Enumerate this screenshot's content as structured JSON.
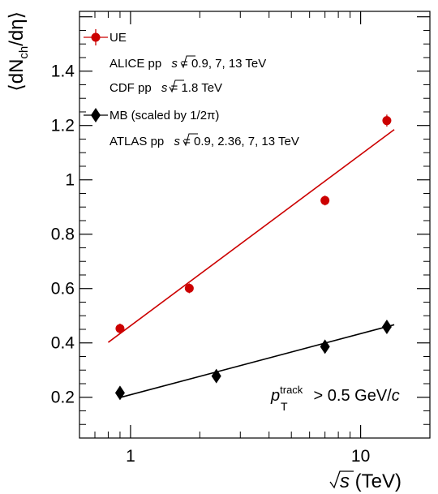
{
  "chart_data": {
    "type": "scatter",
    "title": "",
    "xscale": "log",
    "xlim": [
      0.6,
      20
    ],
    "ylim": [
      0.05,
      1.62
    ],
    "grid": false,
    "legend_position": "top-left",
    "xlabel": {
      "sqrt": "s",
      "rest": " (TeV)"
    },
    "ylabel": {
      "pre": "⟨dN",
      "sub": "ch",
      "post": "/dη⟩"
    },
    "x_ticks": [
      {
        "value": 1,
        "label": "1"
      },
      {
        "value": 10,
        "label": "10"
      }
    ],
    "y_ticks": [
      {
        "value": 0.2,
        "label": "0.2"
      },
      {
        "value": 0.4,
        "label": "0.4"
      },
      {
        "value": 0.6,
        "label": "0.6"
      },
      {
        "value": 0.8,
        "label": "0.8"
      },
      {
        "value": 1.0,
        "label": "1"
      },
      {
        "value": 1.2,
        "label": "1.2"
      },
      {
        "value": 1.4,
        "label": "1.4"
      }
    ],
    "series": [
      {
        "name": "UE",
        "marker": "circle",
        "color": "#cc0000",
        "x": [
          0.9,
          1.8,
          7,
          13
        ],
        "y": [
          0.453,
          0.601,
          0.924,
          1.218
        ],
        "yerr": [
          0.018,
          0.018,
          0.018,
          0.022
        ],
        "fit": {
          "x": [
            0.8,
            14
          ],
          "y": [
            0.402,
            1.185
          ]
        }
      },
      {
        "name": "MB (scaled by 1/2π)",
        "marker": "diamond",
        "color": "#000000",
        "x": [
          0.9,
          2.36,
          7,
          13
        ],
        "y": [
          0.216,
          0.278,
          0.386,
          0.459
        ],
        "yerr": [
          0.0,
          0.0,
          0.0,
          0.0
        ],
        "fit": {
          "x": [
            0.9,
            14
          ],
          "y": [
            0.199,
            0.467
          ]
        }
      }
    ],
    "legend": {
      "ue_label": "UE",
      "alice_label": {
        "pre": "ALICE pp ",
        "sqrt": "s",
        "post": " = 0.9, 7, 13 TeV"
      },
      "cdf_label": {
        "pre": "CDF pp ",
        "sqrt": "s",
        "post": " = 1.8 TeV"
      },
      "mb_label": "MB (scaled by 1/2π)",
      "atlas_label": {
        "pre": "ATLAS pp ",
        "sqrt": "s",
        "post": " = 0.9, 2.36, 7, 13 TeV"
      }
    },
    "annotation": {
      "p": "p",
      "sup": "track",
      "sub": "T",
      "rest": " > 0.5 GeV/",
      "unit": "c"
    }
  }
}
